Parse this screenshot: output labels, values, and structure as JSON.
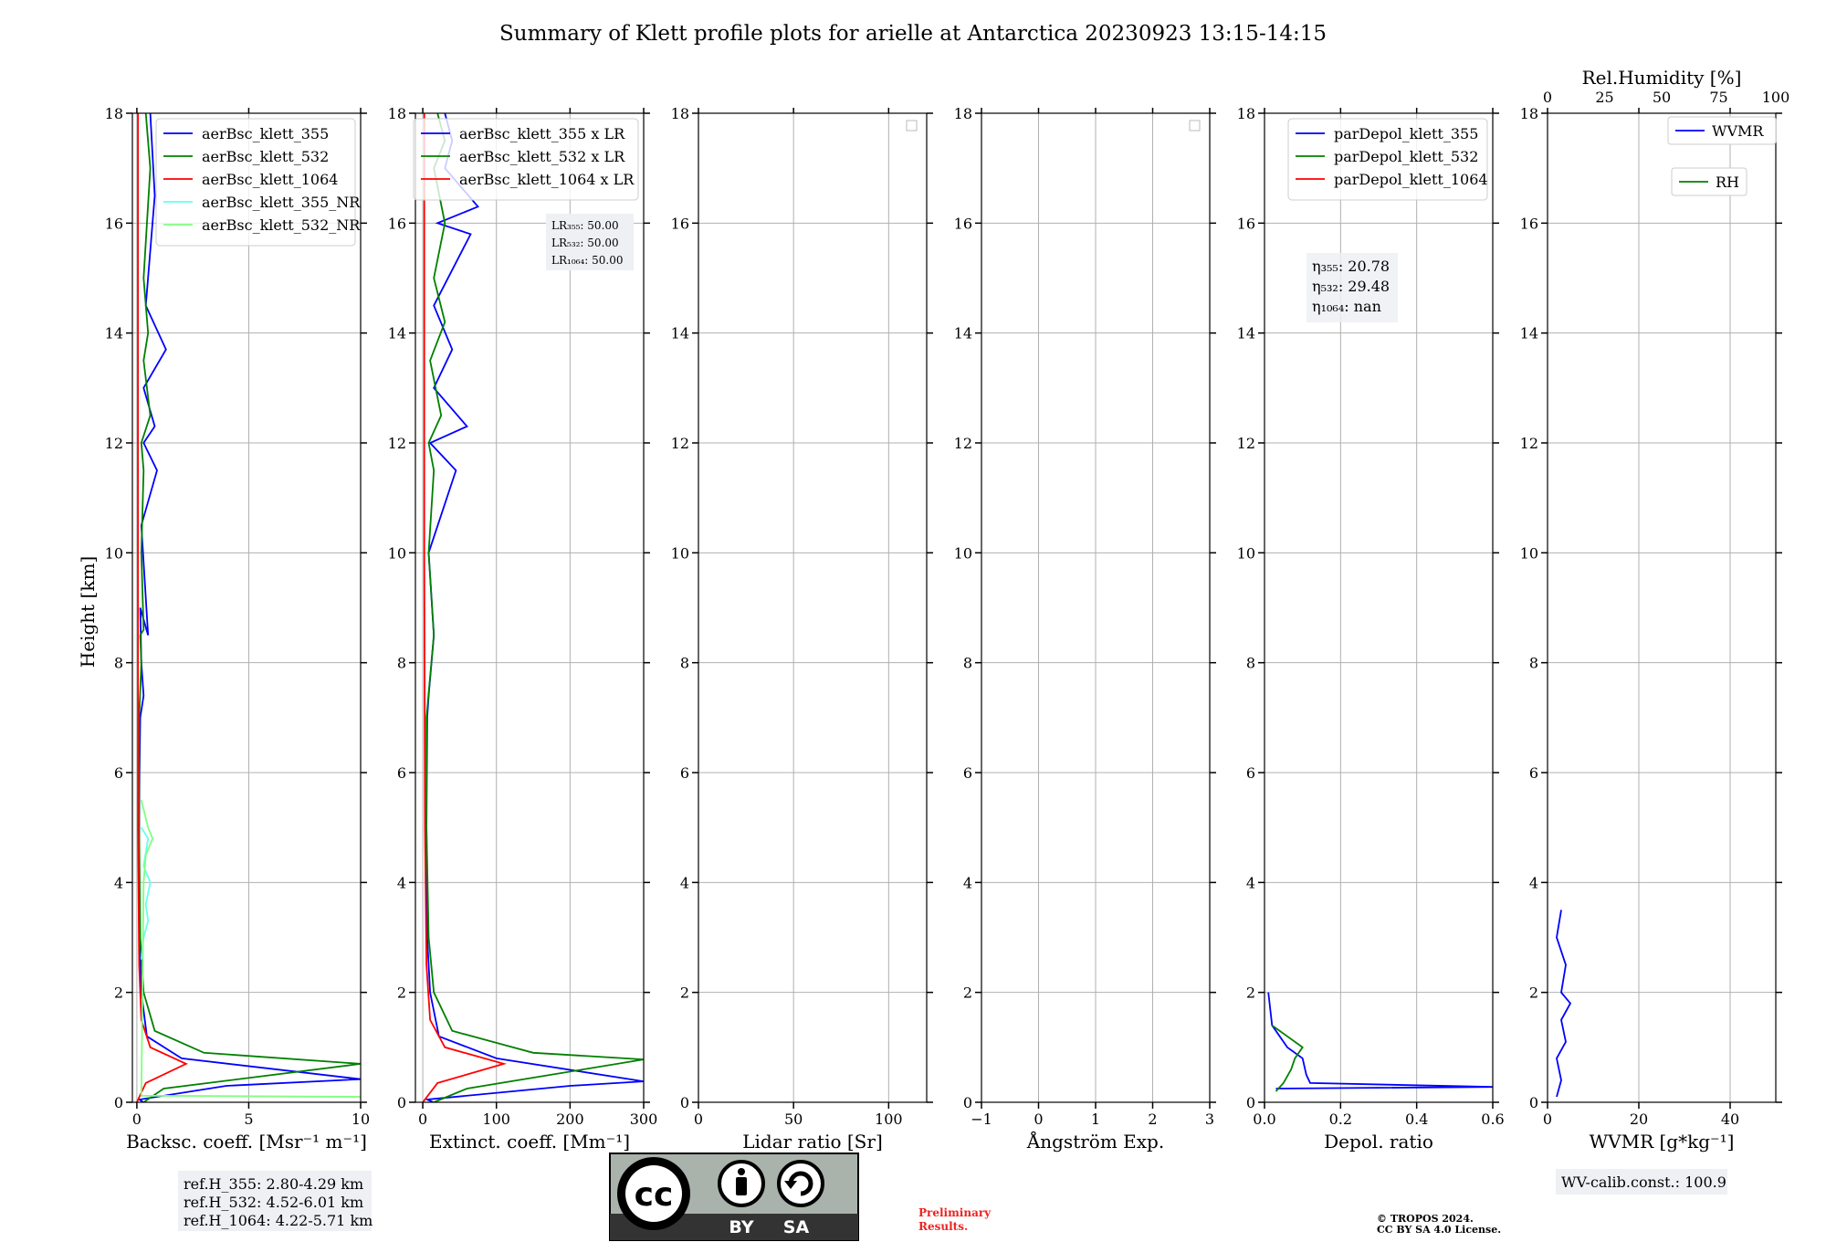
{
  "title": "Summary of Klett profile plots for arielle at Antarctica 20230923 13:15-14:15",
  "colors": {
    "blue": "#0000ff",
    "green": "#008000",
    "red": "#ff0000",
    "cyan": "#66ffee",
    "lightgreen": "#80ff80",
    "grid": "#b0b0b0",
    "boxbg": "#eef0f4",
    "preliminary": "#ee2222",
    "license_bg": "#aab2ac",
    "license_dark": "#333333"
  },
  "ylabel": "Height [km]",
  "yticks": [
    "0",
    "2",
    "4",
    "6",
    "8",
    "10",
    "12",
    "14",
    "16",
    "18"
  ],
  "notes": {
    "refH": [
      "ref.H_355: 2.80-4.29 km",
      "ref.H_532: 4.52-6.01 km",
      "ref.H_1064: 4.22-5.71 km"
    ],
    "preliminary": [
      "Preliminary",
      "Results."
    ],
    "copyright": [
      "© TROPOS 2024.",
      "CC BY SA 4.0 License."
    ],
    "wv_calib": "WV-calib.const.: 100.9",
    "license_badge": {
      "cc": "cc",
      "by": "BY",
      "sa": "SA"
    }
  },
  "chart_data": [
    {
      "type": "line",
      "xlabel": "Backsc. coeff. [Msr⁻¹ m⁻¹]",
      "ylabel": "Height [km]",
      "xlim": [
        -0.2,
        10
      ],
      "ylim": [
        0,
        18
      ],
      "xticks": [
        "0",
        "5",
        "10"
      ],
      "grid": true,
      "legend_position": "top-right",
      "series": [
        {
          "name": "aerBsc_klett_355",
          "color": "blue",
          "x": [
            0.28,
            0.12,
            4.0,
            10,
            2.0,
            0.45,
            0.2,
            0.12,
            0.08,
            0.1,
            0.12,
            0.15,
            0.3,
            0.2,
            0.15,
            0.5,
            0.2,
            0.9,
            0.3,
            0.8,
            0.3,
            1.3,
            0.4,
            0.8,
            0.6
          ],
          "y": [
            0.0,
            0.05,
            0.3,
            0.42,
            0.8,
            1.2,
            2.0,
            3.0,
            4.0,
            5.0,
            6.0,
            7.0,
            7.4,
            8.0,
            9.0,
            8.5,
            10.5,
            11.5,
            12.0,
            12.3,
            13.0,
            13.7,
            14.5,
            16.5,
            18.0
          ]
        },
        {
          "name": "aerBsc_klett_532",
          "color": "green",
          "x": [
            0.3,
            1.2,
            10,
            3.0,
            0.8,
            0.3,
            0.15,
            0.1,
            0.1,
            0.2,
            0.15,
            0.3,
            0.2,
            0.3,
            0.2,
            0.6,
            0.3,
            0.5,
            0.3,
            0.6,
            0.4
          ],
          "y": [
            0.0,
            0.25,
            0.7,
            0.9,
            1.3,
            2.0,
            3.0,
            5.0,
            7.0,
            8.0,
            8.5,
            8.6,
            10.0,
            11.5,
            12.0,
            12.5,
            13.5,
            14.0,
            15.0,
            17.0,
            18.0
          ]
        },
        {
          "name": "aerBsc_klett_1064",
          "color": "red",
          "x": [
            0.0,
            0.4,
            2.2,
            0.6,
            0.2,
            0.1,
            0.05,
            0.05,
            0.05
          ],
          "y": [
            0.0,
            0.35,
            0.7,
            1.0,
            1.5,
            2.5,
            5.0,
            10.0,
            18.0
          ]
        },
        {
          "name": "aerBsc_klett_355_NR",
          "color": "cyan",
          "x": [
            0.2,
            0.3,
            0.5,
            0.4,
            0.6,
            0.3,
            0.5,
            0.2
          ],
          "y": [
            2.6,
            3.0,
            3.3,
            3.6,
            4.0,
            4.3,
            4.8,
            5.0
          ]
        },
        {
          "name": "aerBsc_klett_532_NR",
          "color": "lightgreen",
          "x": [
            10,
            0.2,
            0.3,
            0.4,
            0.7,
            0.5,
            0.2
          ],
          "y": [
            0.1,
            0.12,
            4.0,
            4.5,
            4.8,
            5.0,
            5.5
          ]
        }
      ]
    },
    {
      "type": "line",
      "xlabel": "Extinct. coeff. [Mm⁻¹]",
      "xlim": [
        -10,
        300
      ],
      "ylim": [
        0,
        18
      ],
      "xticks": [
        "0",
        "100",
        "200",
        "300"
      ],
      "grid": true,
      "legend_position": "top-right",
      "annotation": [
        "LR₃₅₅: 50.00",
        "LR₅₃₂: 50.00",
        "LR₁₀₆₄: 50.00"
      ],
      "series": [
        {
          "name": "aerBsc_klett_355 x LR",
          "color": "blue",
          "x": [
            14,
            6,
            200,
            300,
            100,
            22,
            10,
            6,
            5,
            6,
            8,
            15,
            8,
            45,
            10,
            60,
            15,
            40,
            15,
            65,
            20,
            75,
            30,
            40,
            30
          ],
          "y": [
            0.0,
            0.05,
            0.3,
            0.38,
            0.8,
            1.2,
            2.0,
            3.0,
            5.0,
            7.0,
            7.4,
            8.5,
            10.0,
            11.5,
            12.0,
            12.3,
            13.0,
            13.7,
            14.5,
            15.8,
            16.0,
            16.3,
            17.0,
            17.5,
            18.0
          ]
        },
        {
          "name": "aerBsc_klett_532 x LR",
          "color": "green",
          "x": [
            15,
            60,
            300,
            150,
            40,
            15,
            8,
            5,
            5,
            15,
            8,
            15,
            8,
            25,
            10,
            30,
            15,
            30,
            15,
            30,
            20
          ],
          "y": [
            0.0,
            0.25,
            0.78,
            0.9,
            1.3,
            2.0,
            3.0,
            5.0,
            7.0,
            8.5,
            10.0,
            11.5,
            12.0,
            12.5,
            13.5,
            14.2,
            15.0,
            16.0,
            17.0,
            17.5,
            18.0
          ]
        },
        {
          "name": "aerBsc_klett_1064 x LR",
          "color": "red",
          "x": [
            0,
            20,
            110,
            30,
            10,
            5,
            3,
            2,
            2
          ],
          "y": [
            0.0,
            0.35,
            0.7,
            1.0,
            1.5,
            2.5,
            5.0,
            10.0,
            18.0
          ]
        }
      ]
    },
    {
      "type": "line",
      "xlabel": "Lidar ratio [Sr]",
      "xlim": [
        0,
        120
      ],
      "ylim": [
        0,
        18
      ],
      "xticks": [
        "0",
        "50",
        "100"
      ],
      "grid": true,
      "series": []
    },
    {
      "type": "line",
      "xlabel": "Ångström Exp.",
      "xlim": [
        -1,
        3
      ],
      "ylim": [
        0,
        18
      ],
      "xticks": [
        "−1",
        "0",
        "1",
        "2",
        "3"
      ],
      "grid": true,
      "series": []
    },
    {
      "type": "line",
      "xlabel": "Depol. ratio",
      "xlim": [
        0,
        0.6
      ],
      "ylim": [
        0,
        18
      ],
      "xticks": [
        "0.0",
        "0.2",
        "0.4",
        "0.6"
      ],
      "grid": true,
      "legend_position": "top-right",
      "annotation": [
        "η₃₅₅: 20.78",
        "η₅₃₂: 29.48",
        "η₁₀₆₄: nan"
      ],
      "series": [
        {
          "name": "parDepol_klett_355",
          "color": "blue",
          "x": [
            0.03,
            0.6,
            0.12,
            0.11,
            0.1,
            0.06,
            0.02,
            0.01
          ],
          "y": [
            0.25,
            0.28,
            0.35,
            0.5,
            0.8,
            1.0,
            1.4,
            2.0
          ]
        },
        {
          "name": "parDepol_klett_532",
          "color": "green",
          "x": [
            0.03,
            0.05,
            0.07,
            0.08,
            0.1,
            0.06,
            0.02
          ],
          "y": [
            0.2,
            0.35,
            0.6,
            0.8,
            1.0,
            1.2,
            1.4
          ]
        },
        {
          "name": "parDepol_klett_1064",
          "color": "red",
          "x": [],
          "y": []
        }
      ]
    },
    {
      "type": "line",
      "xlabel": "WVMR [g*kg⁻¹]",
      "x2label": "Rel.Humidity [%]",
      "xlim": [
        0,
        50
      ],
      "x2lim": [
        0,
        100
      ],
      "ylim": [
        0,
        18
      ],
      "xticks": [
        "0",
        "20",
        "40"
      ],
      "x2ticks": [
        "0",
        "25",
        "50",
        "75",
        "100"
      ],
      "grid": true,
      "legend_position": "top-right",
      "series": [
        {
          "name": "WVMR",
          "color": "blue",
          "x": [
            2,
            3,
            2,
            4,
            3,
            5,
            3,
            4,
            2,
            3
          ],
          "y": [
            0.1,
            0.4,
            0.8,
            1.1,
            1.5,
            1.8,
            2.0,
            2.5,
            3.0,
            3.5
          ]
        },
        {
          "name": "RH",
          "color": "green",
          "x": [],
          "y": []
        }
      ]
    }
  ]
}
